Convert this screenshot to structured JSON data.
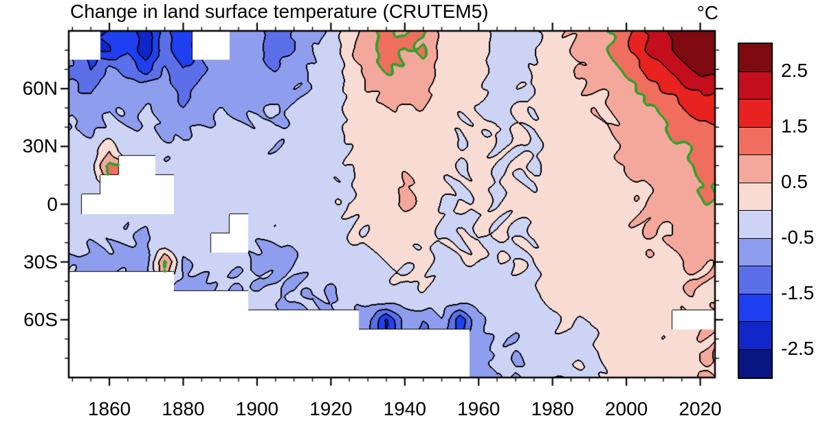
{
  "title": "Change in land surface temperature (CRUTEM5)",
  "units_label": "°C",
  "colorbar": {
    "tick_labels": [
      "2.5",
      "1.5",
      "0.5",
      "-0.5",
      "-1.5",
      "-2.5"
    ]
  },
  "chart_data": {
    "type": "heatmap",
    "title": "Change in land surface temperature (CRUTEM5)",
    "colorbar_title": "°C",
    "x_axis": {
      "tick_labels": [
        "1860",
        "1880",
        "1900",
        "1920",
        "1940",
        "1960",
        "1980",
        "2000",
        "2020"
      ],
      "tick_years": [
        1860,
        1880,
        1900,
        1920,
        1940,
        1960,
        1980,
        2000,
        2020
      ],
      "minor_step": 5,
      "range": [
        1849,
        2024
      ]
    },
    "y_axis": {
      "tick_labels": [
        "60N",
        "30N",
        "0",
        "30S",
        "60S"
      ],
      "tick_lats": [
        60,
        30,
        0,
        -30,
        -60
      ],
      "minor_step": 10,
      "range": [
        90,
        -90
      ]
    },
    "levels": [
      -3.0,
      -2.5,
      -2.0,
      -1.5,
      -1.0,
      -0.5,
      0.0,
      0.5,
      1.0,
      1.5,
      2.0,
      2.5,
      3.0
    ],
    "colors": [
      "#0a1584",
      "#1126c8",
      "#1e40f0",
      "#5a6fe8",
      "#8f9dee",
      "#ccd3f5",
      "#f8dcd4",
      "#f4a89b",
      "#ef6e5d",
      "#e8231f",
      "#c40d1d",
      "#7e0a10"
    ],
    "contour_line_color": "#000000",
    "highlight_contour": {
      "value": 1.0,
      "color": "#2ea32e"
    },
    "missing_color": "#ffffff",
    "grid": {
      "years": [
        1850,
        1855,
        1860,
        1865,
        1870,
        1875,
        1880,
        1885,
        1890,
        1895,
        1900,
        1905,
        1910,
        1915,
        1920,
        1925,
        1930,
        1935,
        1940,
        1945,
        1950,
        1955,
        1960,
        1965,
        1970,
        1975,
        1980,
        1985,
        1990,
        1995,
        2000,
        2005,
        2010,
        2015,
        2020
      ],
      "lats": [
        80,
        70,
        60,
        50,
        40,
        30,
        20,
        10,
        0,
        -10,
        -20,
        -30,
        -40,
        -50,
        -60,
        -70
      ],
      "values": [
        [
          null,
          null,
          -2.0,
          -1.5,
          -2.3,
          -1.2,
          -2.0,
          null,
          null,
          -0.9,
          -0.8,
          -1.3,
          -0.9,
          -0.6,
          -0.4,
          0.3,
          0.8,
          1.2,
          1.0,
          1.1,
          0.4,
          0.2,
          0.3,
          -0.3,
          -0.2,
          -0.1,
          0.4,
          0.5,
          0.7,
          0.9,
          1.3,
          1.9,
          2.4,
          2.8,
          3.1
        ],
        [
          -1.0,
          -1.6,
          -0.8,
          -1.2,
          -1.7,
          -1.0,
          -1.5,
          -1.1,
          -0.8,
          -0.9,
          -0.7,
          -1.0,
          -0.7,
          -0.5,
          -0.3,
          0.2,
          0.7,
          1.0,
          0.9,
          0.9,
          0.3,
          0.2,
          0.2,
          -0.2,
          -0.1,
          0.0,
          0.3,
          0.4,
          0.6,
          0.8,
          1.1,
          1.6,
          2.0,
          2.4,
          2.7
        ],
        [
          -0.8,
          -1.1,
          -0.6,
          -0.9,
          -0.6,
          -0.8,
          -1.2,
          -0.9,
          -0.7,
          -0.7,
          -0.6,
          -0.8,
          -0.6,
          -0.4,
          -0.3,
          0.1,
          0.5,
          0.7,
          0.7,
          0.6,
          0.2,
          0.1,
          0.2,
          -0.2,
          -0.1,
          0.0,
          0.3,
          0.3,
          0.5,
          0.6,
          0.9,
          1.2,
          1.5,
          1.8,
          2.1
        ],
        [
          -0.6,
          -0.8,
          -0.5,
          -0.7,
          -0.5,
          -0.6,
          -0.9,
          -0.7,
          -0.5,
          -0.6,
          -0.5,
          -0.6,
          -0.5,
          -0.3,
          -0.2,
          0.1,
          0.4,
          0.5,
          0.5,
          0.4,
          0.1,
          0.1,
          0.1,
          -0.1,
          0.0,
          0.0,
          0.3,
          0.3,
          0.4,
          0.5,
          0.7,
          0.9,
          1.1,
          1.4,
          1.7
        ],
        [
          -0.5,
          -0.6,
          -0.4,
          -0.5,
          -0.4,
          -0.5,
          -0.6,
          -0.5,
          -0.4,
          -0.4,
          -0.4,
          -0.5,
          -0.4,
          -0.3,
          -0.2,
          0.0,
          0.3,
          0.4,
          0.4,
          0.3,
          0.1,
          0.0,
          0.1,
          -0.1,
          0.0,
          0.0,
          0.2,
          0.3,
          0.4,
          0.4,
          0.6,
          0.8,
          0.9,
          1.2,
          1.4
        ],
        [
          -0.4,
          -0.3,
          0.3,
          -0.4,
          -0.3,
          -0.4,
          -0.5,
          -0.4,
          -0.3,
          -0.3,
          -0.3,
          -0.4,
          -0.4,
          -0.3,
          -0.2,
          0.0,
          0.2,
          0.3,
          0.4,
          0.3,
          0.1,
          0.0,
          0.1,
          0.0,
          0.0,
          0.0,
          0.2,
          0.2,
          0.3,
          0.4,
          0.5,
          0.7,
          0.8,
          1.0,
          1.2
        ],
        [
          -0.3,
          -0.2,
          1.1,
          null,
          null,
          -0.4,
          -0.4,
          -0.3,
          -0.3,
          -0.2,
          -0.3,
          -0.4,
          -0.3,
          -0.2,
          -0.1,
          0.0,
          0.2,
          0.3,
          0.4,
          0.3,
          0.1,
          0.0,
          0.1,
          0.0,
          0.0,
          0.0,
          0.2,
          0.2,
          0.3,
          0.4,
          0.5,
          0.6,
          0.7,
          0.9,
          1.1
        ],
        [
          -0.3,
          -0.2,
          null,
          null,
          null,
          null,
          -0.3,
          -0.3,
          -0.2,
          -0.2,
          -0.3,
          -0.3,
          -0.3,
          -0.2,
          -0.1,
          0.0,
          0.2,
          0.2,
          0.5,
          0.3,
          0.1,
          0.0,
          0.1,
          0.0,
          0.1,
          0.0,
          0.2,
          0.3,
          0.3,
          0.3,
          0.4,
          0.5,
          0.6,
          0.8,
          1.0
        ],
        [
          -0.3,
          null,
          null,
          null,
          null,
          null,
          -0.3,
          -0.2,
          -0.2,
          -0.2,
          -0.3,
          -0.3,
          -0.2,
          -0.2,
          -0.1,
          0.1,
          0.2,
          0.2,
          0.6,
          0.3,
          0.0,
          0.0,
          0.1,
          0.0,
          0.1,
          0.1,
          0.3,
          0.3,
          0.3,
          0.3,
          0.4,
          0.5,
          0.6,
          0.8,
          0.9
        ],
        [
          -0.3,
          -0.4,
          -0.3,
          -0.4,
          -0.4,
          -0.3,
          -0.3,
          -0.3,
          -0.3,
          null,
          -0.3,
          -0.4,
          -0.3,
          -0.2,
          -0.2,
          0.0,
          0.1,
          0.2,
          0.3,
          0.2,
          0.0,
          -0.1,
          0.0,
          0.0,
          0.0,
          0.0,
          0.2,
          0.2,
          0.3,
          0.3,
          0.4,
          0.5,
          0.5,
          0.7,
          0.8
        ],
        [
          -0.4,
          -0.5,
          -0.4,
          -0.5,
          -0.5,
          -0.4,
          -0.4,
          -0.4,
          null,
          null,
          -0.4,
          -0.5,
          -0.4,
          -0.3,
          -0.3,
          -0.1,
          0.0,
          0.1,
          0.2,
          0.1,
          0.0,
          -0.1,
          0.0,
          -0.1,
          0.0,
          0.0,
          0.2,
          0.2,
          0.2,
          0.3,
          0.3,
          0.4,
          0.5,
          0.6,
          0.7
        ],
        [
          -0.5,
          -0.7,
          -0.5,
          -0.6,
          -0.7,
          1.1,
          -0.5,
          -0.5,
          -0.4,
          -0.4,
          -0.5,
          -0.6,
          -0.5,
          -0.3,
          -0.3,
          -0.2,
          -0.1,
          0.0,
          0.1,
          0.1,
          -0.1,
          -0.1,
          0.0,
          -0.1,
          0.0,
          0.0,
          0.1,
          0.2,
          0.2,
          0.3,
          0.3,
          0.4,
          0.4,
          0.5,
          0.6
        ],
        [
          null,
          null,
          null,
          null,
          null,
          null,
          -0.5,
          -0.6,
          -0.4,
          -0.5,
          -0.5,
          -0.6,
          -0.6,
          -0.4,
          -0.4,
          -0.3,
          -0.2,
          -0.1,
          0.0,
          0.0,
          -0.2,
          -0.2,
          -0.1,
          -0.2,
          -0.1,
          -0.1,
          0.1,
          0.1,
          0.2,
          0.2,
          0.3,
          0.3,
          0.3,
          0.4,
          0.5
        ],
        [
          null,
          null,
          null,
          null,
          null,
          null,
          null,
          null,
          null,
          null,
          -0.4,
          -0.5,
          -0.6,
          -0.4,
          -0.5,
          -0.3,
          -0.3,
          -0.2,
          -0.3,
          -0.2,
          -0.3,
          -0.2,
          -0.2,
          -0.2,
          -0.1,
          -0.1,
          0.1,
          0.1,
          0.1,
          0.2,
          0.2,
          0.3,
          0.3,
          0.4,
          0.4
        ],
        [
          null,
          null,
          null,
          null,
          null,
          null,
          null,
          null,
          null,
          null,
          null,
          null,
          null,
          null,
          null,
          null,
          -0.9,
          -2.0,
          -0.8,
          -1.0,
          -0.6,
          -1.8,
          -0.5,
          -0.3,
          -0.3,
          -0.2,
          0.0,
          0.1,
          0.0,
          0.1,
          0.2,
          0.2,
          0.1,
          null,
          null
        ],
        [
          null,
          null,
          null,
          null,
          null,
          null,
          null,
          null,
          null,
          null,
          null,
          null,
          null,
          null,
          null,
          null,
          null,
          null,
          null,
          null,
          null,
          null,
          -0.8,
          -0.4,
          -0.5,
          -0.3,
          -0.1,
          0.0,
          -0.1,
          0.1,
          0.3,
          0.2,
          0.1,
          0.2,
          0.5
        ]
      ]
    }
  }
}
